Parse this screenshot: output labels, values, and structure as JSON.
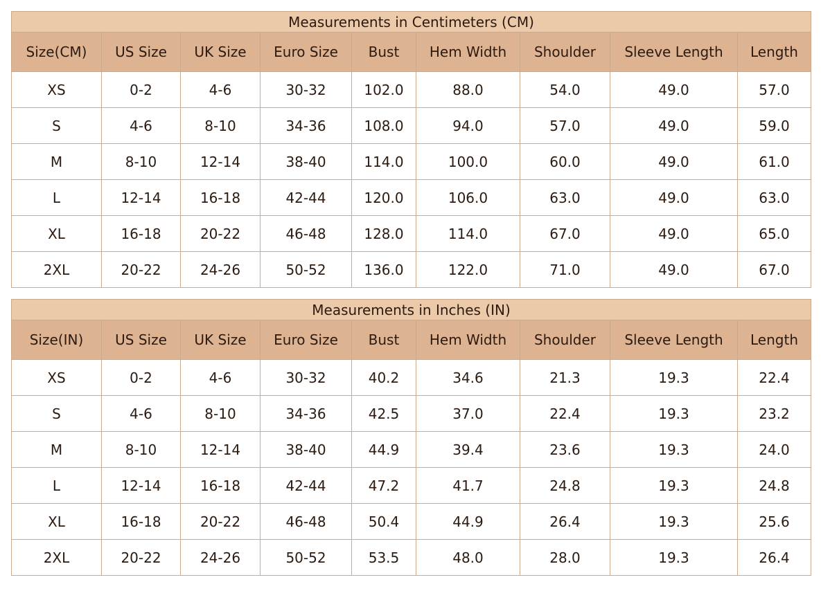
{
  "tables": [
    {
      "title": "Measurements in Centimeters (CM)",
      "headers": [
        "Size(CM)",
        "US Size",
        "UK Size",
        "Euro Size",
        "Bust",
        "Hem Width",
        "Shoulder",
        "Sleeve Length",
        "Length"
      ],
      "rows": [
        [
          "XS",
          "0-2",
          "4-6",
          "30-32",
          "102.0",
          "88.0",
          "54.0",
          "49.0",
          "57.0"
        ],
        [
          "S",
          "4-6",
          "8-10",
          "34-36",
          "108.0",
          "94.0",
          "57.0",
          "49.0",
          "59.0"
        ],
        [
          "M",
          "8-10",
          "12-14",
          "38-40",
          "114.0",
          "100.0",
          "60.0",
          "49.0",
          "61.0"
        ],
        [
          "L",
          "12-14",
          "16-18",
          "42-44",
          "120.0",
          "106.0",
          "63.0",
          "49.0",
          "63.0"
        ],
        [
          "XL",
          "16-18",
          "20-22",
          "46-48",
          "128.0",
          "114.0",
          "67.0",
          "49.0",
          "65.0"
        ],
        [
          "2XL",
          "20-22",
          "24-26",
          "50-52",
          "136.0",
          "122.0",
          "71.0",
          "49.0",
          "67.0"
        ]
      ]
    },
    {
      "title": "Measurements in Inches (IN)",
      "headers": [
        "Size(IN)",
        "US Size",
        "UK Size",
        "Euro Size",
        "Bust",
        "Hem Width",
        "Shoulder",
        "Sleeve Length",
        "Length"
      ],
      "rows": [
        [
          "XS",
          "0-2",
          "4-6",
          "30-32",
          "40.2",
          "34.6",
          "21.3",
          "19.3",
          "22.4"
        ],
        [
          "S",
          "4-6",
          "8-10",
          "34-36",
          "42.5",
          "37.0",
          "22.4",
          "19.3",
          "23.2"
        ],
        [
          "M",
          "8-10",
          "12-14",
          "38-40",
          "44.9",
          "39.4",
          "23.6",
          "19.3",
          "24.0"
        ],
        [
          "L",
          "12-14",
          "16-18",
          "42-44",
          "47.2",
          "41.7",
          "24.8",
          "19.3",
          "24.8"
        ],
        [
          "XL",
          "16-18",
          "20-22",
          "46-48",
          "50.4",
          "44.9",
          "26.4",
          "19.3",
          "25.6"
        ],
        [
          "2XL",
          "20-22",
          "24-26",
          "50-52",
          "53.5",
          "48.0",
          "28.0",
          "19.3",
          "26.4"
        ]
      ]
    }
  ]
}
